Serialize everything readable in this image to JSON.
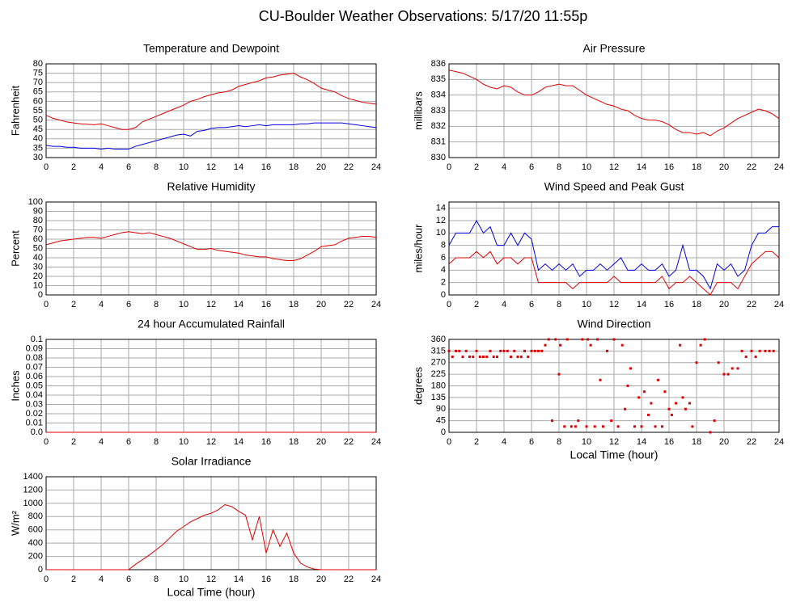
{
  "title": "CU-Boulder Weather Observations: 5/17/20 11:55p",
  "chart_data": [
    {
      "type": "line",
      "title": "Temperature and Dewpoint",
      "ylabel": "Fahrenheit",
      "x": [
        0,
        0.5,
        1,
        1.5,
        2,
        2.5,
        3,
        3.5,
        4,
        4.5,
        5,
        5.5,
        6,
        6.5,
        7,
        7.5,
        8,
        8.5,
        9,
        9.5,
        10,
        10.5,
        11,
        11.5,
        12,
        12.5,
        13,
        13.5,
        14,
        14.5,
        15,
        15.5,
        16,
        16.5,
        17,
        17.5,
        18,
        18.5,
        19,
        19.5,
        20,
        20.5,
        21,
        21.5,
        22,
        22.5,
        23,
        23.5,
        24
      ],
      "series": [
        {
          "color": "#e00000",
          "values": [
            52.5,
            51,
            50,
            49,
            48.5,
            48,
            47.8,
            47.5,
            48,
            47,
            46,
            45,
            45,
            46,
            49,
            50.5,
            52,
            53.5,
            55,
            56.5,
            58,
            60,
            61,
            62.5,
            63.5,
            64.5,
            65,
            66,
            68,
            69,
            70,
            71,
            72.5,
            73,
            74,
            74.5,
            75,
            73,
            71.5,
            69.5,
            67,
            66,
            65,
            63,
            61.5,
            60.5,
            59.5,
            59,
            58.5
          ]
        },
        {
          "color": "#0000e0",
          "values": [
            36.5,
            36,
            36,
            35.5,
            35.5,
            35,
            35,
            35,
            34.5,
            35,
            34.5,
            34.5,
            34.5,
            36,
            37,
            38,
            39,
            40,
            41,
            42,
            42.5,
            41.5,
            44,
            44.5,
            45.5,
            46,
            46,
            46.5,
            47,
            46.5,
            47,
            47.5,
            47,
            47.5,
            47.5,
            47.5,
            47.5,
            48,
            48,
            48.5,
            48.5,
            48.5,
            48.5,
            48.5,
            48,
            47.5,
            47,
            46.5,
            46
          ]
        }
      ],
      "xlim": [
        0,
        24
      ],
      "xticks": [
        0,
        2,
        4,
        6,
        8,
        10,
        12,
        14,
        16,
        18,
        20,
        22,
        24
      ],
      "ylim": [
        30,
        80
      ],
      "yticks": [
        30,
        35,
        40,
        45,
        50,
        55,
        60,
        65,
        70,
        75,
        80
      ],
      "grid": true
    },
    {
      "type": "line",
      "title": "Air Pressure",
      "ylabel": "millibars",
      "x": [
        0,
        0.5,
        1,
        1.5,
        2,
        2.5,
        3,
        3.5,
        4,
        4.5,
        5,
        5.5,
        6,
        6.5,
        7,
        7.5,
        8,
        8.5,
        9,
        9.5,
        10,
        10.5,
        11,
        11.5,
        12,
        12.5,
        13,
        13.5,
        14,
        14.5,
        15,
        15.5,
        16,
        16.5,
        17,
        17.5,
        18,
        18.5,
        19,
        19.5,
        20,
        20.5,
        21,
        21.5,
        22,
        22.5,
        23,
        23.5,
        24
      ],
      "series": [
        {
          "color": "#e00000",
          "values": [
            835.6,
            835.5,
            835.4,
            835.2,
            835,
            834.7,
            834.5,
            834.4,
            834.6,
            834.5,
            834.2,
            834,
            834,
            834.2,
            834.5,
            834.6,
            834.7,
            834.6,
            834.6,
            834.3,
            834,
            833.8,
            833.6,
            833.4,
            833.3,
            833.1,
            833,
            832.7,
            832.5,
            832.4,
            832.4,
            832.3,
            832.1,
            831.8,
            831.6,
            831.6,
            831.5,
            831.6,
            831.4,
            831.7,
            831.9,
            832.2,
            832.5,
            832.7,
            832.9,
            833.1,
            833,
            832.8,
            832.5
          ]
        }
      ],
      "xlim": [
        0,
        24
      ],
      "xticks": [
        0,
        2,
        4,
        6,
        8,
        10,
        12,
        14,
        16,
        18,
        20,
        22,
        24
      ],
      "ylim": [
        830,
        836
      ],
      "yticks": [
        830,
        831,
        832,
        833,
        834,
        835,
        836
      ],
      "grid": true
    },
    {
      "type": "line",
      "title": "Relative Humidity",
      "ylabel": "Percent",
      "x": [
        0,
        0.5,
        1,
        1.5,
        2,
        2.5,
        3,
        3.5,
        4,
        4.5,
        5,
        5.5,
        6,
        6.5,
        7,
        7.5,
        8,
        8.5,
        9,
        9.5,
        10,
        10.5,
        11,
        11.5,
        12,
        12.5,
        13,
        13.5,
        14,
        14.5,
        15,
        15.5,
        16,
        16.5,
        17,
        17.5,
        18,
        18.5,
        19,
        19.5,
        20,
        20.5,
        21,
        21.5,
        22,
        22.5,
        23,
        23.5,
        24
      ],
      "series": [
        {
          "color": "#e00000",
          "values": [
            54,
            56,
            58,
            59,
            60,
            61,
            62,
            62,
            61,
            63,
            65,
            67,
            68,
            67,
            66,
            67,
            65,
            63,
            61,
            58,
            55,
            52,
            49,
            49,
            50,
            48,
            47,
            46,
            45,
            43,
            42,
            41,
            41,
            39,
            38,
            37,
            37,
            39,
            43,
            47,
            52,
            53,
            54,
            58,
            61,
            62,
            63,
            63,
            62
          ]
        }
      ],
      "xlim": [
        0,
        24
      ],
      "xticks": [
        0,
        2,
        4,
        6,
        8,
        10,
        12,
        14,
        16,
        18,
        20,
        22,
        24
      ],
      "ylim": [
        0,
        100
      ],
      "yticks": [
        0,
        10,
        20,
        30,
        40,
        50,
        60,
        70,
        80,
        90,
        100
      ],
      "grid": true
    },
    {
      "type": "line",
      "title": "Wind Speed and Peak Gust",
      "ylabel": "miles/hour",
      "x": [
        0,
        0.5,
        1,
        1.5,
        2,
        2.5,
        3,
        3.5,
        4,
        4.5,
        5,
        5.5,
        6,
        6.5,
        7,
        7.5,
        8,
        8.5,
        9,
        9.5,
        10,
        10.5,
        11,
        11.5,
        12,
        12.5,
        13,
        13.5,
        14,
        14.5,
        15,
        15.5,
        16,
        16.5,
        17,
        17.5,
        18,
        18.5,
        19,
        19.5,
        20,
        20.5,
        21,
        21.5,
        22,
        22.5,
        23,
        23.5,
        24
      ],
      "series": [
        {
          "color": "#0000e0",
          "values": [
            8,
            10,
            10,
            10,
            12,
            10,
            11,
            8,
            8,
            10,
            8,
            10,
            9,
            4,
            5,
            4,
            5,
            4,
            5,
            3,
            4,
            4,
            5,
            4,
            5,
            6,
            4,
            4,
            5,
            4,
            4,
            5,
            3,
            4,
            8,
            4,
            4,
            3,
            1,
            5,
            4,
            5,
            3,
            4,
            8,
            10,
            10,
            11,
            11
          ]
        },
        {
          "color": "#e00000",
          "values": [
            5,
            6,
            6,
            6,
            7,
            6,
            7,
            5,
            6,
            6,
            5,
            6,
            6,
            2,
            2,
            2,
            2,
            2,
            1,
            2,
            2,
            2,
            2,
            2,
            3,
            2,
            2,
            2,
            2,
            2,
            2,
            3,
            1,
            2,
            2,
            3,
            2,
            1,
            0,
            2,
            2,
            2,
            1,
            3,
            5,
            6,
            7,
            7,
            6
          ]
        }
      ],
      "xlim": [
        0,
        24
      ],
      "xticks": [
        0,
        2,
        4,
        6,
        8,
        10,
        12,
        14,
        16,
        18,
        20,
        22,
        24
      ],
      "ylim": [
        0,
        15
      ],
      "yticks": [
        0,
        2,
        4,
        6,
        8,
        10,
        12,
        14
      ],
      "grid": true
    },
    {
      "type": "line",
      "title": "24 hour Accumulated Rainfall",
      "ylabel": "Inches",
      "x": [
        0,
        24
      ],
      "series": [
        {
          "color": "#e00000",
          "values": [
            0,
            0
          ]
        }
      ],
      "xlim": [
        0,
        24
      ],
      "xticks": [
        0,
        2,
        4,
        6,
        8,
        10,
        12,
        14,
        16,
        18,
        20,
        22,
        24
      ],
      "ylim": [
        0,
        0.1
      ],
      "yticks": [
        {
          "value": 0,
          "label": "0.0"
        },
        0.01,
        0.02,
        0.03,
        0.04,
        0.05,
        0.06,
        0.07,
        0.08,
        0.09,
        0.1
      ],
      "grid": true
    },
    {
      "type": "scatter",
      "title": "Wind Direction",
      "ylabel": "degrees",
      "xlabel": "Local Time (hour)",
      "x": [
        0,
        0.25,
        0.5,
        0.75,
        1,
        1.25,
        1.5,
        1.75,
        2,
        2.25,
        2.5,
        2.75,
        3,
        3.25,
        3.5,
        3.75,
        4,
        4.25,
        4.5,
        4.75,
        5,
        5.25,
        5.5,
        5.75,
        6,
        6.25,
        6.5,
        6.75,
        7,
        7.25,
        7.5,
        7.75,
        8,
        8.1,
        8.4,
        8.6,
        8.9,
        9.2,
        9.4,
        9.7,
        10,
        10.1,
        10.3,
        10.6,
        10.8,
        11,
        11.2,
        11.5,
        11.8,
        12,
        12.3,
        12.6,
        12.8,
        13,
        13.2,
        13.5,
        13.8,
        14,
        14.2,
        14.5,
        14.7,
        15,
        15.2,
        15.5,
        15.7,
        16,
        16.2,
        16.5,
        16.8,
        17,
        17.2,
        17.5,
        17.7,
        18,
        18.3,
        18.6,
        19,
        19.3,
        19.6,
        20,
        20.3,
        20.6,
        21,
        21.3,
        21.6,
        22,
        22.3,
        22.6,
        23,
        23.3,
        23.6,
        24
      ],
      "series": [
        {
          "color": "#e00000",
          "values": [
            315,
            292.5,
            315,
            315,
            292.5,
            315,
            292.5,
            292.5,
            315,
            292.5,
            292.5,
            292.5,
            315,
            292.5,
            292.5,
            315,
            315,
            315,
            292.5,
            315,
            292.5,
            292.5,
            315,
            292.5,
            315,
            315,
            315,
            315,
            337.5,
            360,
            45,
            360,
            225,
            337.5,
            22.5,
            360,
            22.5,
            22.5,
            45,
            360,
            22.5,
            360,
            337.5,
            22.5,
            360,
            202.5,
            22.5,
            315,
            45,
            360,
            22.5,
            337.5,
            90,
            180,
            247.5,
            22.5,
            135,
            22.5,
            157.5,
            67.5,
            112.5,
            22.5,
            202.5,
            22.5,
            157.5,
            90,
            67.5,
            112.5,
            337.5,
            135,
            90,
            112.5,
            22.5,
            270,
            337.5,
            360,
            0,
            45,
            270,
            225,
            225,
            247.5,
            247.5,
            315,
            292.5,
            315,
            292.5,
            315,
            315,
            315,
            315
          ]
        }
      ],
      "xlim": [
        0,
        24
      ],
      "xticks": [
        0,
        2,
        4,
        6,
        8,
        10,
        12,
        14,
        16,
        18,
        20,
        22,
        24
      ],
      "ylim": [
        0,
        360
      ],
      "yticks": [
        0,
        45,
        90,
        135,
        180,
        225,
        270,
        315,
        360
      ],
      "grid": true
    },
    {
      "type": "line",
      "title": "Solar Irradiance",
      "ylabel": "W/m²",
      "xlabel": "Local Time (hour)",
      "x": [
        0,
        0.5,
        1,
        1.5,
        2,
        2.5,
        3,
        3.5,
        4,
        4.5,
        5,
        5.5,
        6,
        6.5,
        7,
        7.5,
        8,
        8.5,
        9,
        9.5,
        10,
        10.5,
        11,
        11.5,
        12,
        12.5,
        13,
        13.5,
        14,
        14.5,
        15,
        15.5,
        16,
        16.5,
        17,
        17.5,
        18,
        18.5,
        19,
        19.5,
        20,
        20.5,
        21,
        21.5,
        22,
        22.5,
        23,
        23.5,
        24
      ],
      "series": [
        {
          "color": "#e00000",
          "values": [
            0,
            0,
            0,
            0,
            0,
            0,
            0,
            0,
            0,
            0,
            0,
            0,
            0,
            80,
            150,
            220,
            300,
            380,
            480,
            580,
            650,
            720,
            770,
            820,
            850,
            900,
            980,
            950,
            880,
            820,
            450,
            800,
            250,
            600,
            350,
            550,
            250,
            100,
            40,
            10,
            0,
            0,
            0,
            0,
            0,
            0,
            0,
            0,
            0
          ]
        }
      ],
      "xlim": [
        0,
        24
      ],
      "xticks": [
        0,
        2,
        4,
        6,
        8,
        10,
        12,
        14,
        16,
        18,
        20,
        22,
        24
      ],
      "ylim": [
        0,
        1400
      ],
      "yticks": [
        0,
        200,
        400,
        600,
        800,
        1000,
        1200,
        1400
      ],
      "grid": true
    }
  ]
}
